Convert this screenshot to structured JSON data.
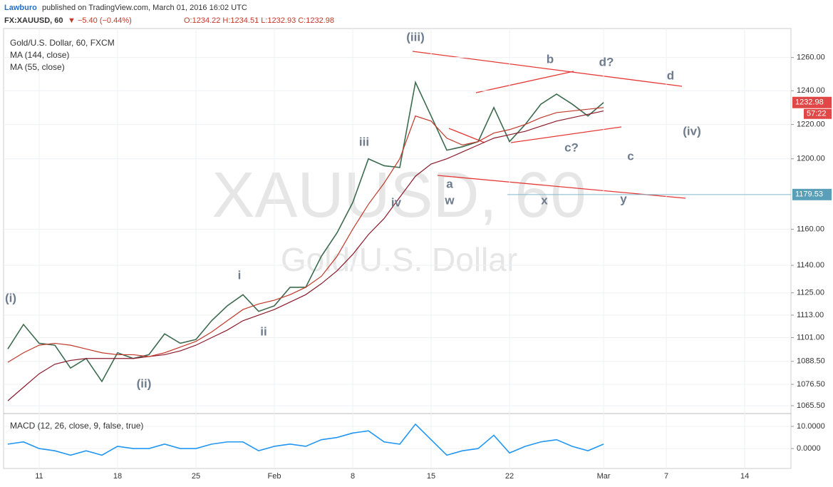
{
  "header": {
    "author": "Lawburo",
    "published": "published on TradingView.com, March 01, 2016 16:02 UTC",
    "symbol": "FX:XAUUSD, 60",
    "change": "▼ −5.40 (−0.44%)",
    "ohlc": "O:1234.22 H:1234.51 L:1232.93 C:1232.98"
  },
  "watermark": {
    "symbol": "XAUUSD, 60",
    "name": "Gold/U.S. Dollar"
  },
  "chart_data": [
    {
      "type": "line",
      "log_scale": true,
      "grid": true,
      "x": [
        -2,
        -1,
        0,
        1,
        2,
        3,
        4,
        5,
        6,
        7,
        8,
        9,
        10,
        11,
        12,
        13,
        14,
        15,
        16,
        17,
        18,
        19,
        20,
        21,
        22,
        23,
        24,
        25,
        26,
        27,
        28,
        29,
        30,
        31,
        32,
        33,
        34,
        35,
        36
      ],
      "xlim": [
        -2.27,
        47.95
      ],
      "xticks": [
        {
          "value": 0,
          "label": "11"
        },
        {
          "value": 5,
          "label": "18"
        },
        {
          "value": 10,
          "label": "25"
        },
        {
          "value": 15,
          "label": "Feb"
        },
        {
          "value": 20,
          "label": "8"
        },
        {
          "value": 25,
          "label": "15"
        },
        {
          "value": 30,
          "label": "22"
        },
        {
          "value": 36,
          "label": "Mar"
        },
        {
          "value": 40,
          "label": "7"
        },
        {
          "value": 45,
          "label": "14"
        }
      ],
      "ylim": [
        1062.2,
        1277.7
      ],
      "yticks": [
        {
          "value": 1260,
          "label": "1260.00"
        },
        {
          "value": 1240,
          "label": "1240.00"
        },
        {
          "value": 1220,
          "label": "1220.00"
        },
        {
          "value": 1200,
          "label": "1200.00"
        },
        {
          "value": 1160,
          "label": "1160.00"
        },
        {
          "value": 1140,
          "label": "1140.00"
        },
        {
          "value": 1125,
          "label": "1125.00"
        },
        {
          "value": 1113,
          "label": "1113.00"
        },
        {
          "value": 1101,
          "label": "1101.00"
        },
        {
          "value": 1088.5,
          "label": "1088.50"
        },
        {
          "value": 1076.5,
          "label": "1076.50"
        },
        {
          "value": 1065.5,
          "label": "1065.50"
        }
      ],
      "series": [
        {
          "name": "Gold/U.S. Dollar, 60, FXCM",
          "color": "#3d6b4f",
          "values": [
            1095,
            1108,
            1098,
            1097,
            1085,
            1090,
            1078,
            1093,
            1090,
            1092,
            1103,
            1098,
            1100,
            1110,
            1118,
            1124,
            1115,
            1118,
            1128,
            1128,
            1145,
            1158,
            1175,
            1200,
            1196,
            1195,
            1245,
            1225,
            1205,
            1207,
            1210,
            1230,
            1210,
            1220,
            1232,
            1238,
            1232,
            1225,
            1233
          ]
        },
        {
          "name": "MA (144, close)",
          "color": "#8b1a2b",
          "values": [
            1068,
            1075,
            1082,
            1087,
            1089,
            1090,
            1090,
            1090,
            1090,
            1091,
            1092,
            1094,
            1097,
            1101,
            1105,
            1110,
            1113,
            1116,
            1120,
            1124,
            1130,
            1137,
            1146,
            1157,
            1166,
            1178,
            1190,
            1197,
            1200,
            1204,
            1208,
            1212,
            1214,
            1216,
            1219,
            1222,
            1224,
            1226,
            1228
          ]
        },
        {
          "name": "MA (55, close)",
          "color": "#c0392b",
          "values": [
            1088,
            1093,
            1097,
            1098,
            1097,
            1095,
            1093,
            1092,
            1092,
            1091,
            1093,
            1096,
            1099,
            1104,
            1110,
            1116,
            1119,
            1121,
            1124,
            1128,
            1134,
            1145,
            1160,
            1174,
            1186,
            1200,
            1225,
            1222,
            1212,
            1208,
            1210,
            1215,
            1217,
            1220,
            1224,
            1227,
            1228,
            1229,
            1230
          ]
        }
      ],
      "last_price": {
        "value": 1232.98,
        "label": "1232.98",
        "countdown": "57:22"
      },
      "price_line": {
        "value": 1179.53,
        "label": "1179.53"
      },
      "annotations": [
        "(iii)",
        "b",
        "d?",
        "d",
        "(iv)",
        "iii",
        "c?",
        "c",
        "a",
        "w",
        "iv",
        "x",
        "y",
        "i",
        "(i)",
        "ii",
        "(ii)"
      ]
    },
    {
      "type": "line",
      "x": [
        -2,
        -1,
        0,
        1,
        2,
        3,
        4,
        5,
        6,
        7,
        8,
        9,
        10,
        11,
        12,
        13,
        14,
        15,
        16,
        17,
        18,
        19,
        20,
        21,
        22,
        23,
        24,
        25,
        26,
        27,
        28,
        29,
        30,
        31,
        32,
        33,
        34,
        35,
        36
      ],
      "xlim": [
        -2.27,
        47.95
      ],
      "ylim": [
        -9.0,
        14.2
      ],
      "yticks": [
        {
          "value": 10,
          "label": "10.0000"
        },
        {
          "value": 0,
          "label": "0.0000"
        }
      ],
      "series": [
        {
          "name": "MACD (12, 26, close, 9, false, true)",
          "color": "#2196f3",
          "values": [
            2,
            3,
            0,
            -1,
            -3,
            -1,
            -3,
            1,
            0,
            0,
            2,
            0,
            0,
            2,
            3,
            3,
            -1,
            1,
            2,
            1,
            4,
            5,
            7,
            8,
            3,
            2,
            11,
            4,
            -3,
            -1,
            0,
            6,
            -2,
            1,
            3,
            4,
            1,
            -1,
            2
          ]
        }
      ]
    }
  ]
}
